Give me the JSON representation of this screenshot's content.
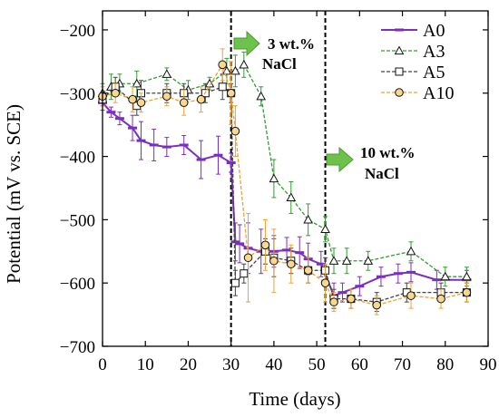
{
  "chart_data": {
    "type": "line",
    "title": "",
    "xlabel": "Time (days)",
    "ylabel": "Potential (mV vs. SCE)",
    "xlim": [
      0,
      90
    ],
    "ylim": [
      -700,
      -170
    ],
    "y_inverted": true,
    "xticks": [
      0,
      10,
      20,
      30,
      40,
      50,
      60,
      70,
      80,
      90
    ],
    "yticks": [
      -200,
      -300,
      -400,
      -500,
      -600,
      -700
    ],
    "xtick_labels": [
      "0",
      "10",
      "20",
      "30",
      "40",
      "50",
      "60",
      "70",
      "80",
      "90"
    ],
    "ytick_labels": [
      "−200",
      "−300",
      "−400",
      "−500",
      "−600",
      "−700"
    ],
    "grid": false,
    "legend_position": "top-right",
    "vlines": [
      30,
      52
    ],
    "annotations": [
      {
        "lines": [
          "3 wt.%",
          "NaCl"
        ],
        "arrow_color": "#6cc24a"
      },
      {
        "lines": [
          "10 wt.%",
          "NaCl"
        ],
        "arrow_color": "#6cc24a"
      }
    ],
    "series": [
      {
        "name": "A0",
        "color": "#7b2fbe",
        "marker": "dash",
        "dashed": false,
        "x": [
          0,
          2,
          4,
          7,
          9,
          12,
          15,
          19,
          23,
          27,
          30,
          31,
          32,
          34,
          37,
          40,
          43,
          46,
          48,
          51,
          54,
          56,
          60,
          65,
          69,
          72,
          78,
          85
        ],
        "y": [
          -315,
          -330,
          -340,
          -355,
          -375,
          -382,
          -385,
          -382,
          -405,
          -398,
          -410,
          -535,
          -538,
          -545,
          -550,
          -550,
          -548,
          -552,
          -562,
          -570,
          -620,
          -615,
          -605,
          -590,
          -585,
          -583,
          -595,
          -595
        ],
        "err": [
          12,
          8,
          10,
          20,
          30,
          25,
          15,
          15,
          30,
          30,
          15,
          30,
          30,
          40,
          35,
          25,
          20,
          25,
          25,
          20,
          20,
          15,
          15,
          15,
          15,
          15,
          15,
          15
        ]
      },
      {
        "name": "A3",
        "color": "#2e9e2e",
        "marker": "triangle",
        "dashed": true,
        "x": [
          0,
          2,
          4,
          8,
          15,
          20,
          25,
          29,
          31,
          33,
          37,
          40,
          44,
          48,
          52,
          54,
          57,
          62,
          72,
          80,
          85
        ],
        "y": [
          -300,
          -290,
          -285,
          -285,
          -270,
          -295,
          -285,
          -265,
          -265,
          -255,
          -305,
          -435,
          -465,
          -500,
          -515,
          -565,
          -565,
          -565,
          -550,
          -590,
          -590
        ],
        "err": [
          15,
          20,
          15,
          20,
          10,
          15,
          10,
          20,
          25,
          20,
          15,
          30,
          25,
          25,
          20,
          20,
          20,
          15,
          15,
          15,
          15
        ]
      },
      {
        "name": "A5",
        "color": "#444444",
        "marker": "square",
        "dashed": true,
        "x": [
          0,
          3,
          8,
          9,
          15,
          19,
          24,
          28,
          30,
          31,
          33,
          38,
          40,
          44,
          48,
          52,
          54,
          58,
          64,
          71,
          79,
          85
        ],
        "y": [
          -310,
          -290,
          -320,
          -300,
          -300,
          -300,
          -300,
          -290,
          -300,
          -600,
          -585,
          -550,
          -560,
          -565,
          -580,
          -580,
          -625,
          -625,
          -630,
          -615,
          -615,
          -615
        ],
        "err": [
          10,
          15,
          15,
          20,
          15,
          15,
          15,
          20,
          15,
          20,
          15,
          20,
          30,
          20,
          20,
          20,
          15,
          15,
          15,
          15,
          15,
          15
        ]
      },
      {
        "name": "A10",
        "color": "#f0a030",
        "marker": "circle",
        "dashed": true,
        "x": [
          0,
          3,
          7,
          9,
          15,
          19,
          23,
          28,
          30,
          31,
          34,
          38,
          40,
          44,
          48,
          52,
          54,
          58,
          64,
          72,
          79,
          85
        ],
        "y": [
          -305,
          -300,
          -310,
          -315,
          -305,
          -315,
          -310,
          -255,
          -300,
          -360,
          -560,
          -540,
          -565,
          -570,
          -580,
          -600,
          -630,
          -625,
          -635,
          -620,
          -625,
          -615
        ],
        "err": [
          15,
          15,
          20,
          15,
          15,
          20,
          20,
          25,
          50,
          40,
          70,
          40,
          50,
          30,
          20,
          30,
          15,
          15,
          15,
          20,
          15,
          15
        ]
      }
    ]
  }
}
